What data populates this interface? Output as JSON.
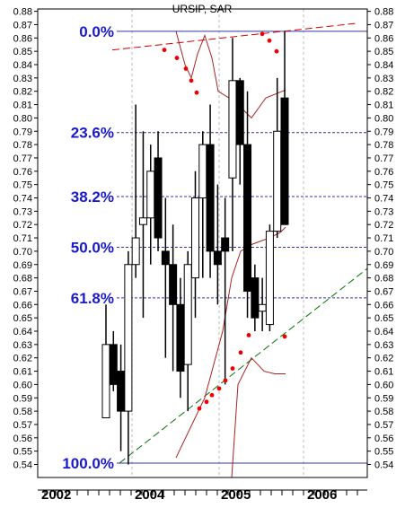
{
  "chart_data": {
    "type": "candlestick",
    "title": "URSIP, SAR",
    "ylim": [
      0.54,
      0.88
    ],
    "y_ticks": [
      0.54,
      0.55,
      0.56,
      0.57,
      0.58,
      0.59,
      0.6,
      0.61,
      0.62,
      0.63,
      0.64,
      0.65,
      0.66,
      0.67,
      0.68,
      0.69,
      0.7,
      0.71,
      0.72,
      0.73,
      0.74,
      0.75,
      0.76,
      0.77,
      0.78,
      0.79,
      0.8,
      0.81,
      0.82,
      0.83,
      0.84,
      0.85,
      0.86,
      0.87,
      0.88
    ],
    "x_tick_labels": [
      "2002",
      "2004",
      "2005",
      "2006"
    ],
    "grid": true,
    "fib_levels": [
      {
        "label": "0.0%",
        "value": 0.865
      },
      {
        "label": "23.6%",
        "value": 0.789
      },
      {
        "label": "38.2%",
        "value": 0.741
      },
      {
        "label": "50.0%",
        "value": 0.703
      },
      {
        "label": "61.8%",
        "value": 0.665
      },
      {
        "label": "100.0%",
        "value": 0.541
      }
    ],
    "candles": [
      {
        "o": 0.575,
        "h": 0.66,
        "l": 0.575,
        "c": 0.63
      },
      {
        "o": 0.63,
        "h": 0.64,
        "l": 0.595,
        "c": 0.6
      },
      {
        "o": 0.61,
        "h": 0.63,
        "l": 0.55,
        "c": 0.58
      },
      {
        "o": 0.58,
        "h": 0.7,
        "l": 0.54,
        "c": 0.69
      },
      {
        "o": 0.69,
        "h": 0.81,
        "l": 0.68,
        "c": 0.71
      },
      {
        "o": 0.72,
        "h": 0.79,
        "l": 0.65,
        "c": 0.725
      },
      {
        "o": 0.725,
        "h": 0.78,
        "l": 0.69,
        "c": 0.76
      },
      {
        "o": 0.77,
        "h": 0.79,
        "l": 0.7,
        "c": 0.71
      },
      {
        "o": 0.7,
        "h": 0.74,
        "l": 0.62,
        "c": 0.69
      },
      {
        "o": 0.69,
        "h": 0.72,
        "l": 0.61,
        "c": 0.66
      },
      {
        "o": 0.66,
        "h": 0.68,
        "l": 0.59,
        "c": 0.61
      },
      {
        "o": 0.615,
        "h": 0.7,
        "l": 0.58,
        "c": 0.69
      },
      {
        "o": 0.68,
        "h": 0.76,
        "l": 0.65,
        "c": 0.74
      },
      {
        "o": 0.74,
        "h": 0.79,
        "l": 0.68,
        "c": 0.78
      },
      {
        "o": 0.78,
        "h": 0.81,
        "l": 0.68,
        "c": 0.7
      },
      {
        "o": 0.7,
        "h": 0.75,
        "l": 0.66,
        "c": 0.69
      },
      {
        "o": 0.71,
        "h": 0.74,
        "l": 0.6,
        "c": 0.7
      },
      {
        "o": 0.755,
        "h": 0.86,
        "l": 0.7,
        "c": 0.828
      },
      {
        "o": 0.828,
        "h": 0.83,
        "l": 0.75,
        "c": 0.78
      },
      {
        "o": 0.78,
        "h": 0.82,
        "l": 0.65,
        "c": 0.67
      },
      {
        "o": 0.68,
        "h": 0.69,
        "l": 0.64,
        "c": 0.65
      },
      {
        "o": 0.655,
        "h": 0.68,
        "l": 0.64,
        "c": 0.66
      },
      {
        "o": 0.645,
        "h": 0.72,
        "l": 0.64,
        "c": 0.715
      },
      {
        "o": 0.715,
        "h": 0.83,
        "l": 0.71,
        "c": 0.79
      },
      {
        "o": 0.815,
        "h": 0.865,
        "l": 0.72,
        "c": 0.72
      }
    ],
    "sar_points": [
      0.851,
      0.845,
      0.837,
      0.828,
      0.819,
      0.582,
      0.587,
      0.592,
      0.597,
      0.603,
      0.612,
      0.624,
      0.637,
      0.863,
      0.858,
      0.85,
      0.636
    ],
    "trendlines": [
      {
        "style": "dashed",
        "color": "#cc0000",
        "from": 0.851,
        "to": 0.871
      },
      {
        "style": "dashed",
        "color": "#007700",
        "from": 0.541,
        "to": 0.687
      }
    ],
    "band_upper": [
      0.865,
      0.84,
      0.83,
      0.848,
      0.862,
      0.845,
      0.82,
      0.812,
      0.8,
      0.815,
      0.821
    ],
    "band_lower": [
      0.545,
      0.59,
      0.64,
      0.68,
      0.7,
      0.705,
      0.708,
      0.71,
      0.712,
      0.714,
      0.718
    ],
    "band_lower2": [
      0.53,
      0.6,
      0.62,
      0.61,
      0.608,
      0.608
    ]
  }
}
